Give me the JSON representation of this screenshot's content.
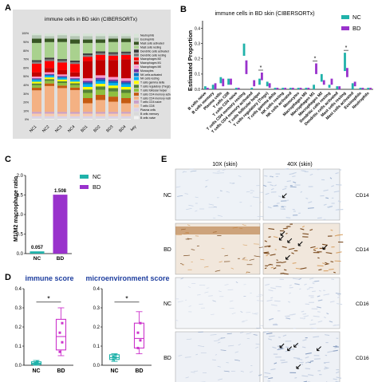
{
  "panels": {
    "A": {
      "letter": "A",
      "title": "immune cells in BD skin (CIBERSORTx)",
      "y_ticks": [
        "100%",
        "90%",
        "80%",
        "70%",
        "60%",
        "50%",
        "40%",
        "30%",
        "20%",
        "10%",
        "0%"
      ],
      "samples": [
        "NC1",
        "NC2",
        "NC3",
        "NC4",
        "BD1",
        "BD2",
        "BD3",
        "BD4"
      ],
      "key_label": "key",
      "legend": [
        "Neutrophils",
        "Eosinophils",
        "Mast cells activated",
        "Mast cells resting",
        "Dendritic cells activated",
        "Dendritic cells resting",
        "Macrophages M2",
        "Macrophages M1",
        "Macrophages M0",
        "Monocytes",
        "NK cells activated",
        "NK cells resting",
        "T cells gamma delta",
        "T cells regulatory (Tregs)",
        "T cells follicular helper",
        "T cells CD4 memory activated",
        "T cells CD4 memory resting",
        "T cells CD4 naive",
        "T cells CD8",
        "Plasma cells",
        "B cells memory",
        "B cells naive"
      ]
    },
    "B": {
      "letter": "B",
      "title": "immune cells in BD skin (CIBERSORTx)",
      "ylabel": "Estimated Proportion",
      "y_ticks": [
        "0.4",
        "0.3",
        "0.2",
        "0.1",
        "0.0"
      ],
      "legend": [
        "NC",
        "BD"
      ],
      "categories": [
        "B cells naive",
        "B cells memory",
        "Plasma cells",
        "T cells CD8",
        "T cells CD4 naive",
        "T cells CD4 memory resting",
        "T cells CD4 memory activated",
        "T cells follicular helper",
        "T cells regulatory (Tregs)",
        "T cells gamma delta",
        "NK cells resting",
        "NK cells activated",
        "Monocytes",
        "Macrophages M0",
        "Macrophages M1",
        "Macrophages M2",
        "Dendritic cells resting",
        "Dendritic cells activated",
        "Mast cells resting",
        "Mast cells activated",
        "Eosinophils",
        "Neutrophils"
      ],
      "sig_marks": [
        "*",
        "*",
        "*"
      ]
    },
    "C": {
      "letter": "C",
      "ylabel": "M1/M2 macrophage ratio",
      "y_ticks": [
        "2.0",
        "1.5",
        "1.0",
        "0.5",
        "0.0"
      ],
      "legend": [
        "NC",
        "BD"
      ],
      "categories": [
        "NC",
        "BD"
      ],
      "value_labels": [
        "0.057",
        "1.508"
      ]
    },
    "D": {
      "letter": "D",
      "left_title": "immune score",
      "right_title": "microenvironment score",
      "left_ticks": [
        "0.4",
        "0.3",
        "0.2",
        "0.1",
        "0.0"
      ],
      "right_ticks": [
        "0.4",
        "0.3",
        "0.2",
        "0.1",
        "0.0"
      ],
      "categories": [
        "NC",
        "BD"
      ],
      "sig": "*"
    },
    "E": {
      "letter": "E",
      "col_labels": [
        "10X (skin)",
        "40X (skin)"
      ],
      "row_labels": [
        "NC",
        "BD",
        "NC",
        "BD"
      ],
      "markers": [
        "CD14",
        "CD14",
        "CD16",
        "CD16"
      ]
    }
  },
  "chart_data": [
    {
      "type": "bar",
      "title": "immune cells in BD skin (CIBERSORTx)",
      "stacked": true,
      "categories": [
        "NC1",
        "NC2",
        "NC3",
        "NC4",
        "BD1",
        "BD2",
        "BD3",
        "BD4"
      ],
      "ylim": [
        0,
        100
      ],
      "series": [
        {
          "name": "B cells naive",
          "color": "#f2f2f2",
          "values": [
            1,
            1,
            1,
            1,
            1,
            1,
            1,
            1
          ]
        },
        {
          "name": "B cells memory",
          "color": "#d9d9d9",
          "values": [
            1,
            1,
            1,
            1,
            1,
            1,
            1,
            1
          ]
        },
        {
          "name": "Plasma cells",
          "color": "#d9d2e9",
          "values": [
            2,
            2,
            2,
            2,
            2,
            2,
            2,
            2
          ]
        },
        {
          "name": "T cells CD8",
          "color": "#f8cbad",
          "values": [
            3,
            3,
            3,
            3,
            3,
            3,
            3,
            3
          ]
        },
        {
          "name": "T cells CD4 naive",
          "color": "#c9a0c9",
          "values": [
            2,
            2,
            2,
            2,
            2,
            2,
            2,
            2
          ]
        },
        {
          "name": "T cells CD4 memory resting",
          "color": "#f4b183",
          "values": [
            25,
            30,
            28,
            26,
            10,
            14,
            12,
            10
          ]
        },
        {
          "name": "T cells CD4 memory activated",
          "color": "#c55a11",
          "values": [
            3,
            3,
            3,
            3,
            6,
            6,
            6,
            6
          ]
        },
        {
          "name": "T cells follicular helper",
          "color": "#8fbf3f",
          "values": [
            3,
            3,
            3,
            3,
            6,
            6,
            6,
            6
          ]
        },
        {
          "name": "T cells regulatory (Tregs)",
          "color": "#548235",
          "values": [
            2,
            2,
            2,
            2,
            4,
            4,
            4,
            4
          ]
        },
        {
          "name": "T cells gamma delta",
          "color": "#ffff00",
          "values": [
            2,
            2,
            2,
            2,
            3,
            3,
            3,
            3
          ]
        },
        {
          "name": "NK cells resting",
          "color": "#00b0f0",
          "values": [
            2,
            2,
            2,
            2,
            3,
            3,
            3,
            3
          ]
        },
        {
          "name": "NK cells activated",
          "color": "#0070c0",
          "values": [
            1,
            1,
            1,
            1,
            2,
            2,
            2,
            2
          ]
        },
        {
          "name": "Monocytes",
          "color": "#7030a0",
          "values": [
            1,
            1,
            1,
            1,
            2,
            2,
            2,
            2
          ]
        },
        {
          "name": "Macrophages M0",
          "color": "#ff99cc",
          "values": [
            2,
            2,
            2,
            2,
            3,
            3,
            3,
            3
          ]
        },
        {
          "name": "Macrophages M1",
          "color": "#c00000",
          "values": [
            5,
            5,
            5,
            5,
            20,
            18,
            20,
            22
          ]
        },
        {
          "name": "Macrophages M2",
          "color": "#ff0000",
          "values": [
            10,
            8,
            9,
            10,
            5,
            6,
            5,
            5
          ]
        },
        {
          "name": "Dendritic cells resting",
          "color": "#7f7f7f",
          "values": [
            2,
            2,
            2,
            2,
            2,
            2,
            2,
            2
          ]
        },
        {
          "name": "Dendritic cells activated",
          "color": "#404040",
          "values": [
            2,
            2,
            2,
            2,
            2,
            2,
            2,
            2
          ]
        },
        {
          "name": "Mast cells resting",
          "color": "#a9d18e",
          "values": [
            20,
            18,
            20,
            20,
            12,
            10,
            12,
            11
          ]
        },
        {
          "name": "Mast cells activated",
          "color": "#375623",
          "values": [
            5,
            4,
            4,
            5,
            4,
            4,
            4,
            4
          ]
        },
        {
          "name": "Eosinophils",
          "color": "#b4c7b4",
          "values": [
            4,
            3,
            4,
            4,
            4,
            4,
            3,
            3
          ]
        },
        {
          "name": "Neutrophils",
          "color": "#d6e4d6",
          "values": [
            2,
            3,
            2,
            3,
            3,
            3,
            3,
            3
          ]
        }
      ]
    },
    {
      "type": "bar",
      "title": "immune cells in BD skin (CIBERSORTx)",
      "ylabel": "Estimated Proportion",
      "ylim": [
        0,
        0.45
      ],
      "categories": [
        "B cells naive",
        "B cells memory",
        "Plasma cells",
        "T cells CD8",
        "T cells CD4 naive",
        "T cells CD4 memory resting",
        "T cells CD4 memory activated",
        "T cells follicular helper",
        "T cells regulatory (Tregs)",
        "T cells gamma delta",
        "NK cells resting",
        "NK cells activated",
        "Monocytes",
        "Macrophages M0",
        "Macrophages M1",
        "Macrophages M2",
        "Dendritic cells resting",
        "Dendritic cells activated",
        "Mast cells resting",
        "Mast cells activated",
        "Eosinophils",
        "Neutrophils"
      ],
      "series": [
        {
          "name": "NC",
          "color": "#20b2aa",
          "low": [
            0.0,
            0.0,
            0.04,
            0.03,
            0.0,
            0.22,
            0.0,
            0.03,
            0.02,
            0.0,
            0.0,
            0.0,
            0.0,
            0.0,
            0.0,
            0.05,
            0.01,
            0.0,
            0.12,
            0.0,
            0.0,
            0.0
          ],
          "high": [
            0.02,
            0.03,
            0.08,
            0.07,
            0.01,
            0.3,
            0.01,
            0.07,
            0.05,
            0.01,
            0.01,
            0.01,
            0.01,
            0.01,
            0.03,
            0.1,
            0.03,
            0.02,
            0.24,
            0.04,
            0.01,
            0.01
          ]
        },
        {
          "name": "BD",
          "color": "#9932cc",
          "low": [
            0.0,
            0.0,
            0.02,
            0.03,
            0.0,
            0.1,
            0.02,
            0.06,
            0.01,
            0.0,
            0.0,
            0.0,
            0.0,
            0.0,
            0.1,
            0.03,
            0.03,
            0.0,
            0.08,
            0.02,
            0.0,
            0.0
          ],
          "high": [
            0.01,
            0.04,
            0.07,
            0.07,
            0.01,
            0.19,
            0.06,
            0.11,
            0.04,
            0.01,
            0.01,
            0.01,
            0.01,
            0.01,
            0.17,
            0.06,
            0.07,
            0.02,
            0.14,
            0.05,
            0.01,
            0.01
          ]
        }
      ],
      "significant": [
        "T cells follicular helper",
        "Macrophages M1",
        "Mast cells resting"
      ]
    },
    {
      "type": "bar",
      "ylabel": "M1/M2 macrophage ratio",
      "categories": [
        "NC",
        "BD"
      ],
      "values": [
        0.057,
        1.508
      ],
      "colors": [
        "#20b2aa",
        "#9932cc"
      ],
      "ylim": [
        0,
        2.0
      ]
    },
    {
      "type": "box",
      "title": "immune score",
      "categories": [
        "NC",
        "BD"
      ],
      "ylim": [
        0,
        0.4
      ],
      "boxes": [
        {
          "name": "NC",
          "color": "#20b2aa",
          "min": 0.0,
          "q1": 0.005,
          "median": 0.01,
          "q3": 0.018,
          "max": 0.025,
          "points": [
            0.005,
            0.01,
            0.012,
            0.018
          ]
        },
        {
          "name": "BD",
          "color": "#cc33cc",
          "min": 0.05,
          "q1": 0.08,
          "median": 0.15,
          "q3": 0.24,
          "max": 0.3,
          "points": [
            0.07,
            0.12,
            0.17,
            0.22
          ]
        }
      ]
    },
    {
      "type": "box",
      "title": "microenvironment score",
      "categories": [
        "NC",
        "BD"
      ],
      "ylim": [
        0,
        0.4
      ],
      "boxes": [
        {
          "name": "NC",
          "color": "#20b2aa",
          "min": 0.02,
          "q1": 0.03,
          "median": 0.04,
          "q3": 0.055,
          "max": 0.06,
          "points": [
            0.03,
            0.04,
            0.045,
            0.055
          ]
        },
        {
          "name": "BD",
          "color": "#cc33cc",
          "min": 0.06,
          "q1": 0.09,
          "median": 0.14,
          "q3": 0.22,
          "max": 0.28,
          "points": [
            0.09,
            0.13,
            0.17,
            0.22
          ]
        }
      ]
    }
  ]
}
